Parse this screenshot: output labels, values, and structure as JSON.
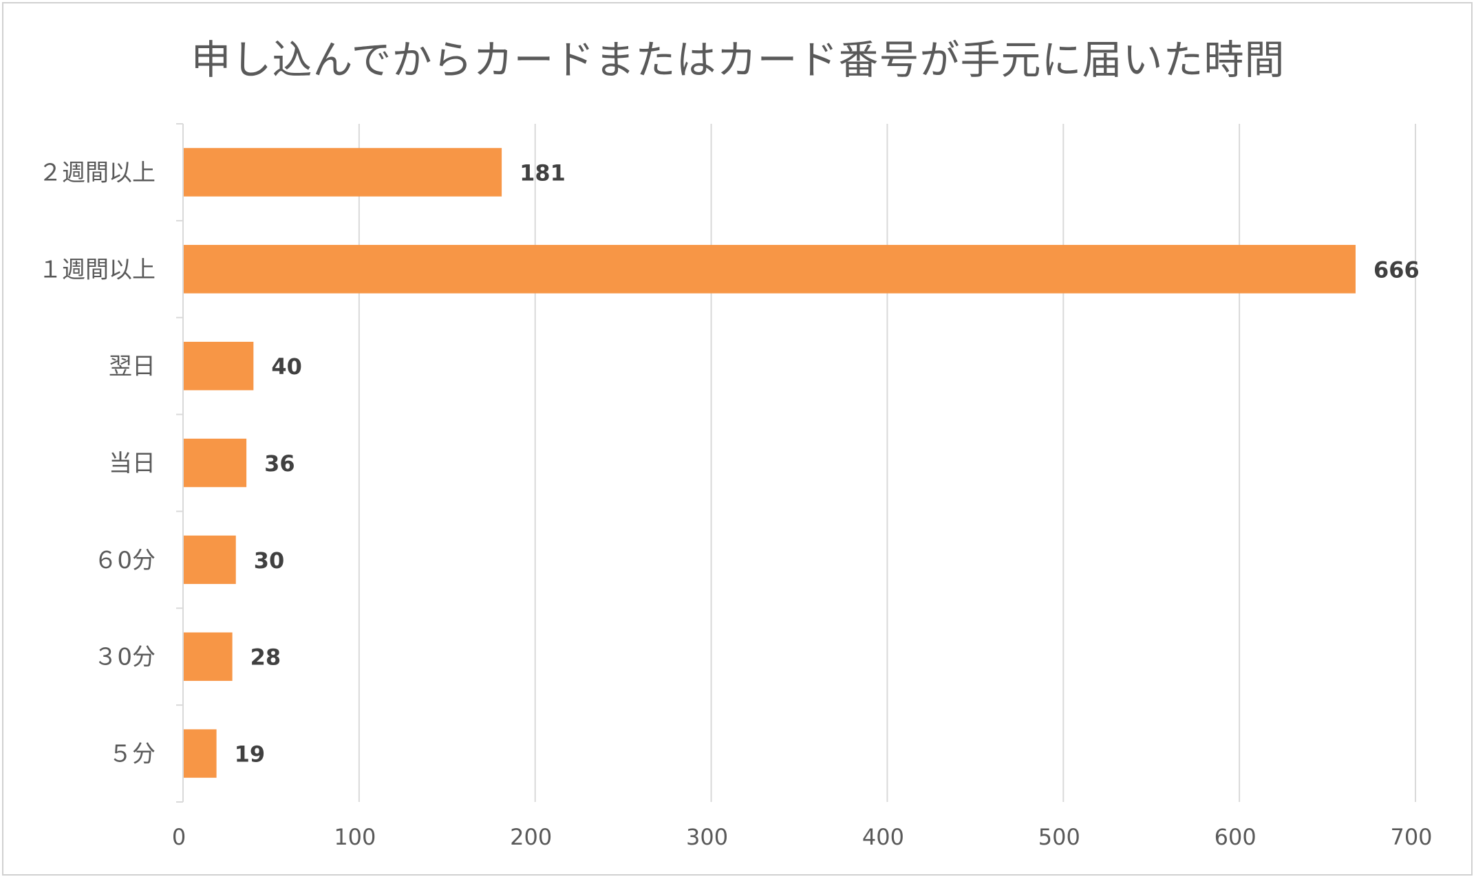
{
  "chart_data": {
    "type": "bar",
    "orientation": "horizontal",
    "title": "申し込んでからカードまたはカード番号が手元に届いた時間",
    "categories": [
      "2週間以上",
      "1週間以上",
      "翌日",
      "当日",
      "60分",
      "30分",
      "5分"
    ],
    "category_labels": [
      "２週間以上",
      "１週間以上",
      "翌日",
      "当日",
      "６0分",
      "３0分",
      "５分"
    ],
    "values": [
      181,
      666,
      40,
      36,
      30,
      28,
      19
    ],
    "xlim": [
      0,
      700
    ],
    "xticks": [
      0,
      100,
      200,
      300,
      400,
      500,
      600,
      700
    ],
    "grid": true,
    "legend": "none",
    "bar_color": "#F79646",
    "grid_color": "#D9D9D9"
  }
}
